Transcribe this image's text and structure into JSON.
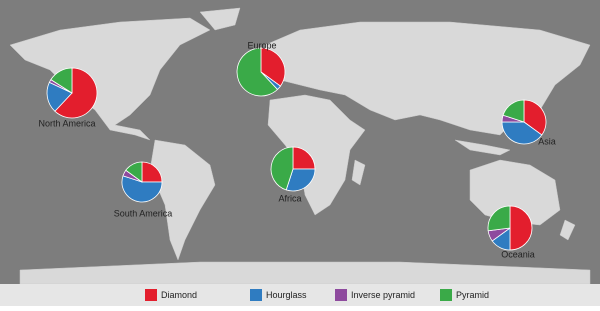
{
  "map": {
    "legend": [
      {
        "name": "Diamond",
        "color": "#e31e2d"
      },
      {
        "name": "Hourglass",
        "color": "#2f7cc1"
      },
      {
        "name": "Inverse pyramid",
        "color": "#8e4a9e"
      },
      {
        "name": "Pyramid",
        "color": "#3aaa48"
      }
    ],
    "regions": [
      {
        "label": "North America",
        "values": [
          62,
          20,
          2,
          16
        ]
      },
      {
        "label": "Europe",
        "values": [
          35,
          3,
          0,
          62
        ]
      },
      {
        "label": "Asia",
        "values": [
          35,
          40,
          5,
          20
        ]
      },
      {
        "label": "South America",
        "values": [
          25,
          55,
          5,
          15
        ]
      },
      {
        "label": "Africa",
        "values": [
          25,
          30,
          0,
          45
        ]
      },
      {
        "label": "Oceania",
        "values": [
          50,
          15,
          8,
          27
        ]
      }
    ]
  }
}
